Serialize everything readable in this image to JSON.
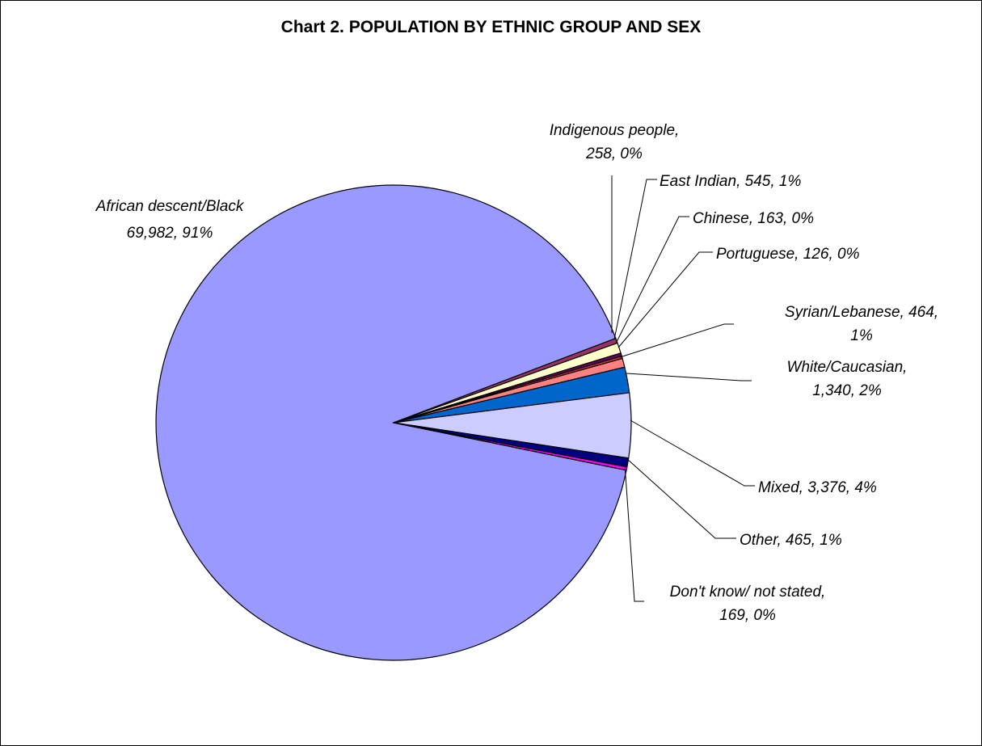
{
  "chart_data": {
    "type": "pie",
    "title": "Chart 2. POPULATION BY ETHNIC GROUP AND SEX",
    "slices": [
      {
        "name": "African descent/Black",
        "value": 69982,
        "value_label": "69,982",
        "percent": "91%",
        "color": "#9999FF"
      },
      {
        "name": "Indigenous people",
        "value": 258,
        "value_label": "258",
        "percent": "0%",
        "color": "#993366"
      },
      {
        "name": "East Indian",
        "value": 545,
        "value_label": "545",
        "percent": "1%",
        "color": "#FFFFCC"
      },
      {
        "name": "Chinese",
        "value": 163,
        "value_label": "163",
        "percent": "0%",
        "color": "#660066"
      },
      {
        "name": "Portuguese",
        "value": 126,
        "value_label": "126",
        "percent": "0%",
        "color": "#CC3333"
      },
      {
        "name": "Syrian/Lebanese",
        "value": 464,
        "value_label": "464",
        "percent": "1%",
        "color": "#FF8080"
      },
      {
        "name": "White/Caucasian",
        "value": 1340,
        "value_label": "1,340",
        "percent": "2%",
        "color": "#0066CC"
      },
      {
        "name": "Mixed",
        "value": 3376,
        "value_label": "3,376",
        "percent": "4%",
        "color": "#CCCCFF"
      },
      {
        "name": "Other",
        "value": 465,
        "value_label": "465",
        "percent": "1%",
        "color": "#000080"
      },
      {
        "name": "Don't know/ not stated",
        "value": 169,
        "value_label": "169",
        "percent": "0%",
        "color": "#FF00FF"
      }
    ],
    "labels": [
      {
        "lines": [
          "Indigenous people,",
          "258, 0%"
        ]
      },
      {
        "lines": [
          "East Indian, 545, 1%"
        ]
      },
      {
        "lines": [
          "Chinese, 163, 0%"
        ]
      },
      {
        "lines": [
          "Portuguese, 126, 0%"
        ]
      },
      {
        "lines": [
          "Syrian/Lebanese, 464,",
          "1%"
        ]
      },
      {
        "lines": [
          "White/Caucasian,",
          "1,340, 2%"
        ]
      },
      {
        "lines": [
          "Mixed, 3,376, 4%"
        ]
      },
      {
        "lines": [
          "Other, 465, 1%"
        ]
      },
      {
        "lines": [
          "Don't know/ not stated,",
          "169, 0%"
        ]
      },
      {
        "lines": [
          "African descent/Black",
          "69,982, 91%"
        ]
      }
    ]
  }
}
